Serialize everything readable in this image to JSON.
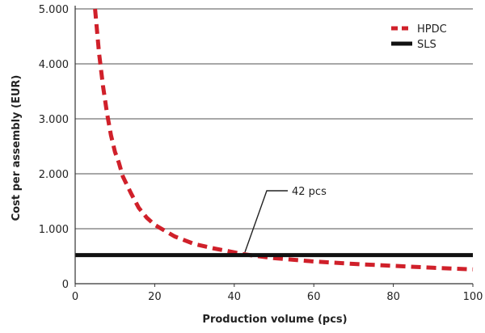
{
  "chart_data": {
    "type": "line",
    "xlabel": "Production volume (pcs)",
    "ylabel": "Cost per assembly (EUR)",
    "xlim": [
      0,
      100
    ],
    "ylim": [
      0,
      5000
    ],
    "xticks": [
      0,
      20,
      40,
      60,
      80,
      100
    ],
    "xtick_labels": [
      "0",
      "20",
      "40",
      "60",
      "80",
      "100"
    ],
    "yticks": [
      0,
      1000,
      2000,
      3000,
      4000,
      5000
    ],
    "ytick_labels": [
      "0",
      "1.000",
      "2.000",
      "3.000",
      "4.000",
      "5.000"
    ],
    "grid": "horizontal",
    "legend_position": "top-right",
    "series": [
      {
        "name": "HPDC",
        "color": "#d0202a",
        "style": "dashed",
        "x": [
          5,
          6,
          7,
          8,
          9,
          10,
          11,
          12,
          14,
          16,
          18,
          20,
          25,
          30,
          35,
          40,
          42,
          45,
          50,
          60,
          70,
          80,
          90,
          100
        ],
        "y": [
          5000,
          4200,
          3600,
          3100,
          2700,
          2400,
          2200,
          1950,
          1650,
          1380,
          1200,
          1070,
          860,
          720,
          640,
          570,
          540,
          510,
          465,
          405,
          360,
          325,
          290,
          260
        ]
      },
      {
        "name": "SLS",
        "color": "#111111",
        "style": "solid",
        "x": [
          0,
          100
        ],
        "y": [
          520,
          520
        ]
      }
    ],
    "annotations": [
      {
        "text": "42 pcs",
        "x": 42,
        "y": 540
      }
    ]
  }
}
